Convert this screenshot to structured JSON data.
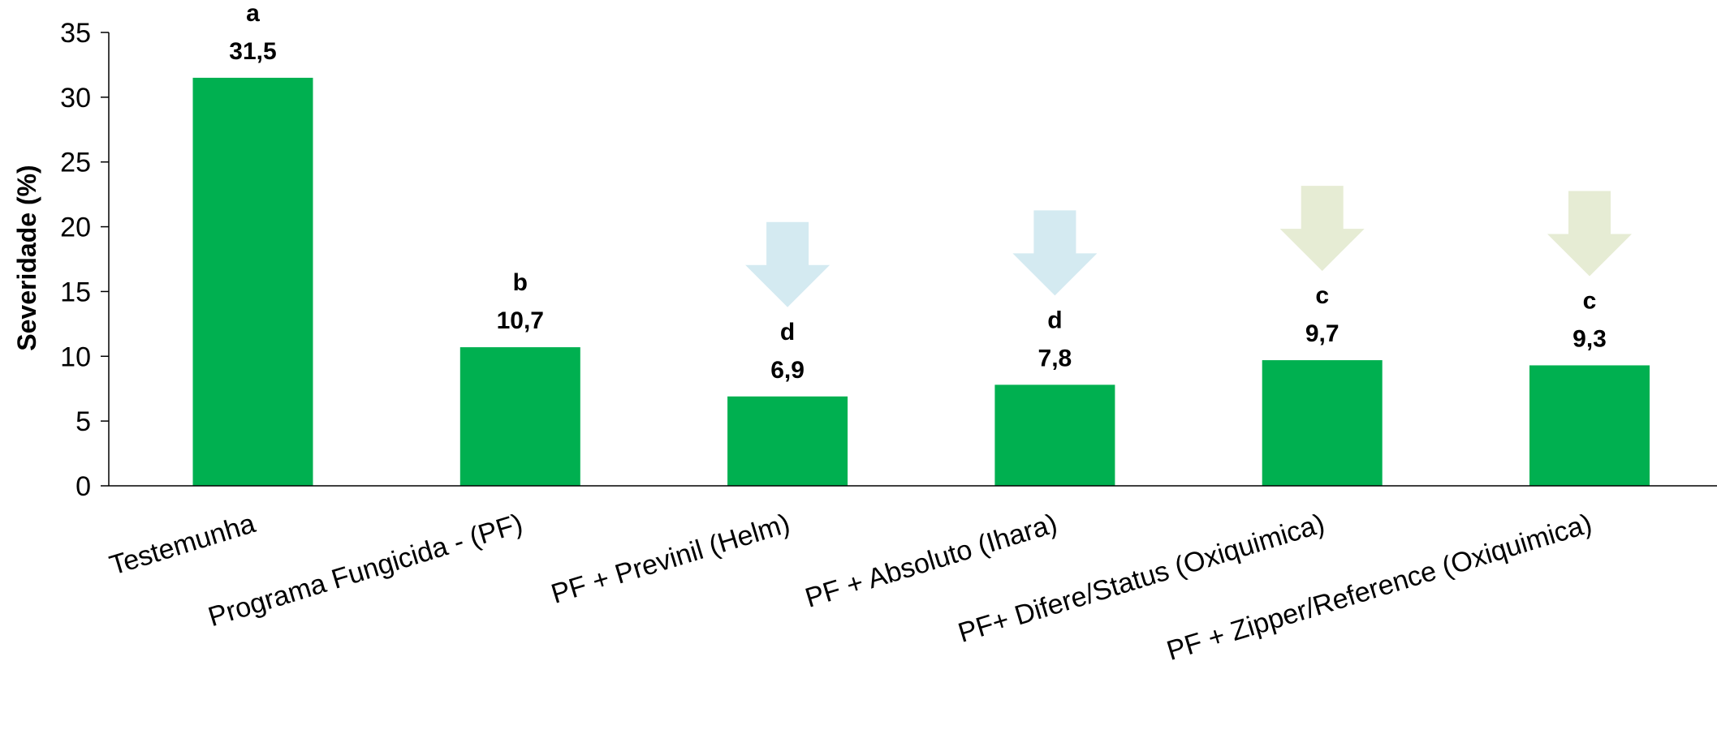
{
  "chart_data": {
    "type": "bar",
    "categories": [
      "Testemunha",
      "Programa Fungicida - (PF)",
      "PF + Previnil (Helm)",
      "PF + Absoluto (Ihara)",
      "PF+ Difere/Status (Oxiquimica)",
      "PF + Zipper/Reference (Oxiquimica)"
    ],
    "values": [
      31.5,
      10.7,
      6.9,
      7.8,
      9.7,
      9.3
    ],
    "value_labels": [
      "31,5",
      "10,7",
      "6,9",
      "7,8",
      "9,7",
      "9,3"
    ],
    "letters": [
      "a",
      "b",
      "d",
      "d",
      "c",
      "c"
    ],
    "ylabel": "Severidade (%)",
    "ylim": [
      0,
      35
    ],
    "yticks": [
      0,
      5,
      10,
      15,
      20,
      25,
      30,
      35
    ],
    "grid": false,
    "legend": "none",
    "colors": {
      "bar": "#00b050",
      "arrow_blue": "#d4eaf1",
      "arrow_green": "#e6ecd4",
      "axis": "#000000"
    },
    "arrows": [
      {
        "category": "PF + Previnil (Helm)",
        "color": "arrow_blue"
      },
      {
        "category": "PF + Absoluto (Ihara)",
        "color": "arrow_blue"
      },
      {
        "category": "PF+ Difere/Status (Oxiquimica)",
        "color": "arrow_green"
      },
      {
        "category": "PF + Zipper/Reference (Oxiquimica)",
        "color": "arrow_green"
      }
    ]
  }
}
